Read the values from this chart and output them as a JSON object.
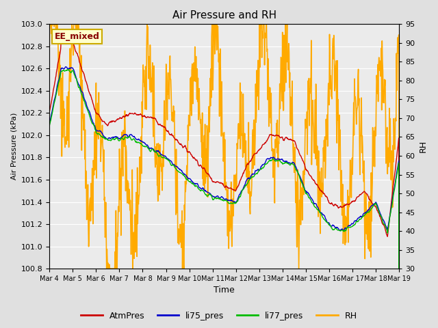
{
  "title": "Air Pressure and RH",
  "xlabel": "Time",
  "ylabel_left": "Air Pressure (kPa)",
  "ylabel_right": "RH",
  "ylim_left": [
    100.8,
    103.0
  ],
  "ylim_right": [
    30,
    95
  ],
  "yticks_left": [
    100.8,
    101.0,
    101.2,
    101.4,
    101.6,
    101.8,
    102.0,
    102.2,
    102.4,
    102.6,
    102.8,
    103.0
  ],
  "yticks_right": [
    30,
    35,
    40,
    45,
    50,
    55,
    60,
    65,
    70,
    75,
    80,
    85,
    90,
    95
  ],
  "xtick_labels": [
    "Mar 4",
    "Mar 5",
    "Mar 6",
    "Mar 7",
    "Mar 8",
    "Mar 9",
    "Mar 10",
    "Mar 11",
    "Mar 12",
    "Mar 13",
    "Mar 14",
    "Mar 15",
    "Mar 16",
    "Mar 17",
    "Mar 18",
    "Mar 19"
  ],
  "annotation_text": "EE_mixed",
  "annotation_facecolor": "#ffffcc",
  "annotation_edgecolor": "#ccaa00",
  "annotation_textcolor": "#880000",
  "line_colors": {
    "AtmPres": "#cc0000",
    "li75_pres": "#0000cc",
    "li77_pres": "#00bb00",
    "RH": "#ffaa00"
  },
  "line_widths": {
    "AtmPres": 1.0,
    "li75_pres": 1.0,
    "li77_pres": 1.0,
    "RH": 1.2
  },
  "bg_color": "#e0e0e0",
  "plot_bg_color": "#ebebeb",
  "grid_color": "#ffffff",
  "n_points": 900
}
